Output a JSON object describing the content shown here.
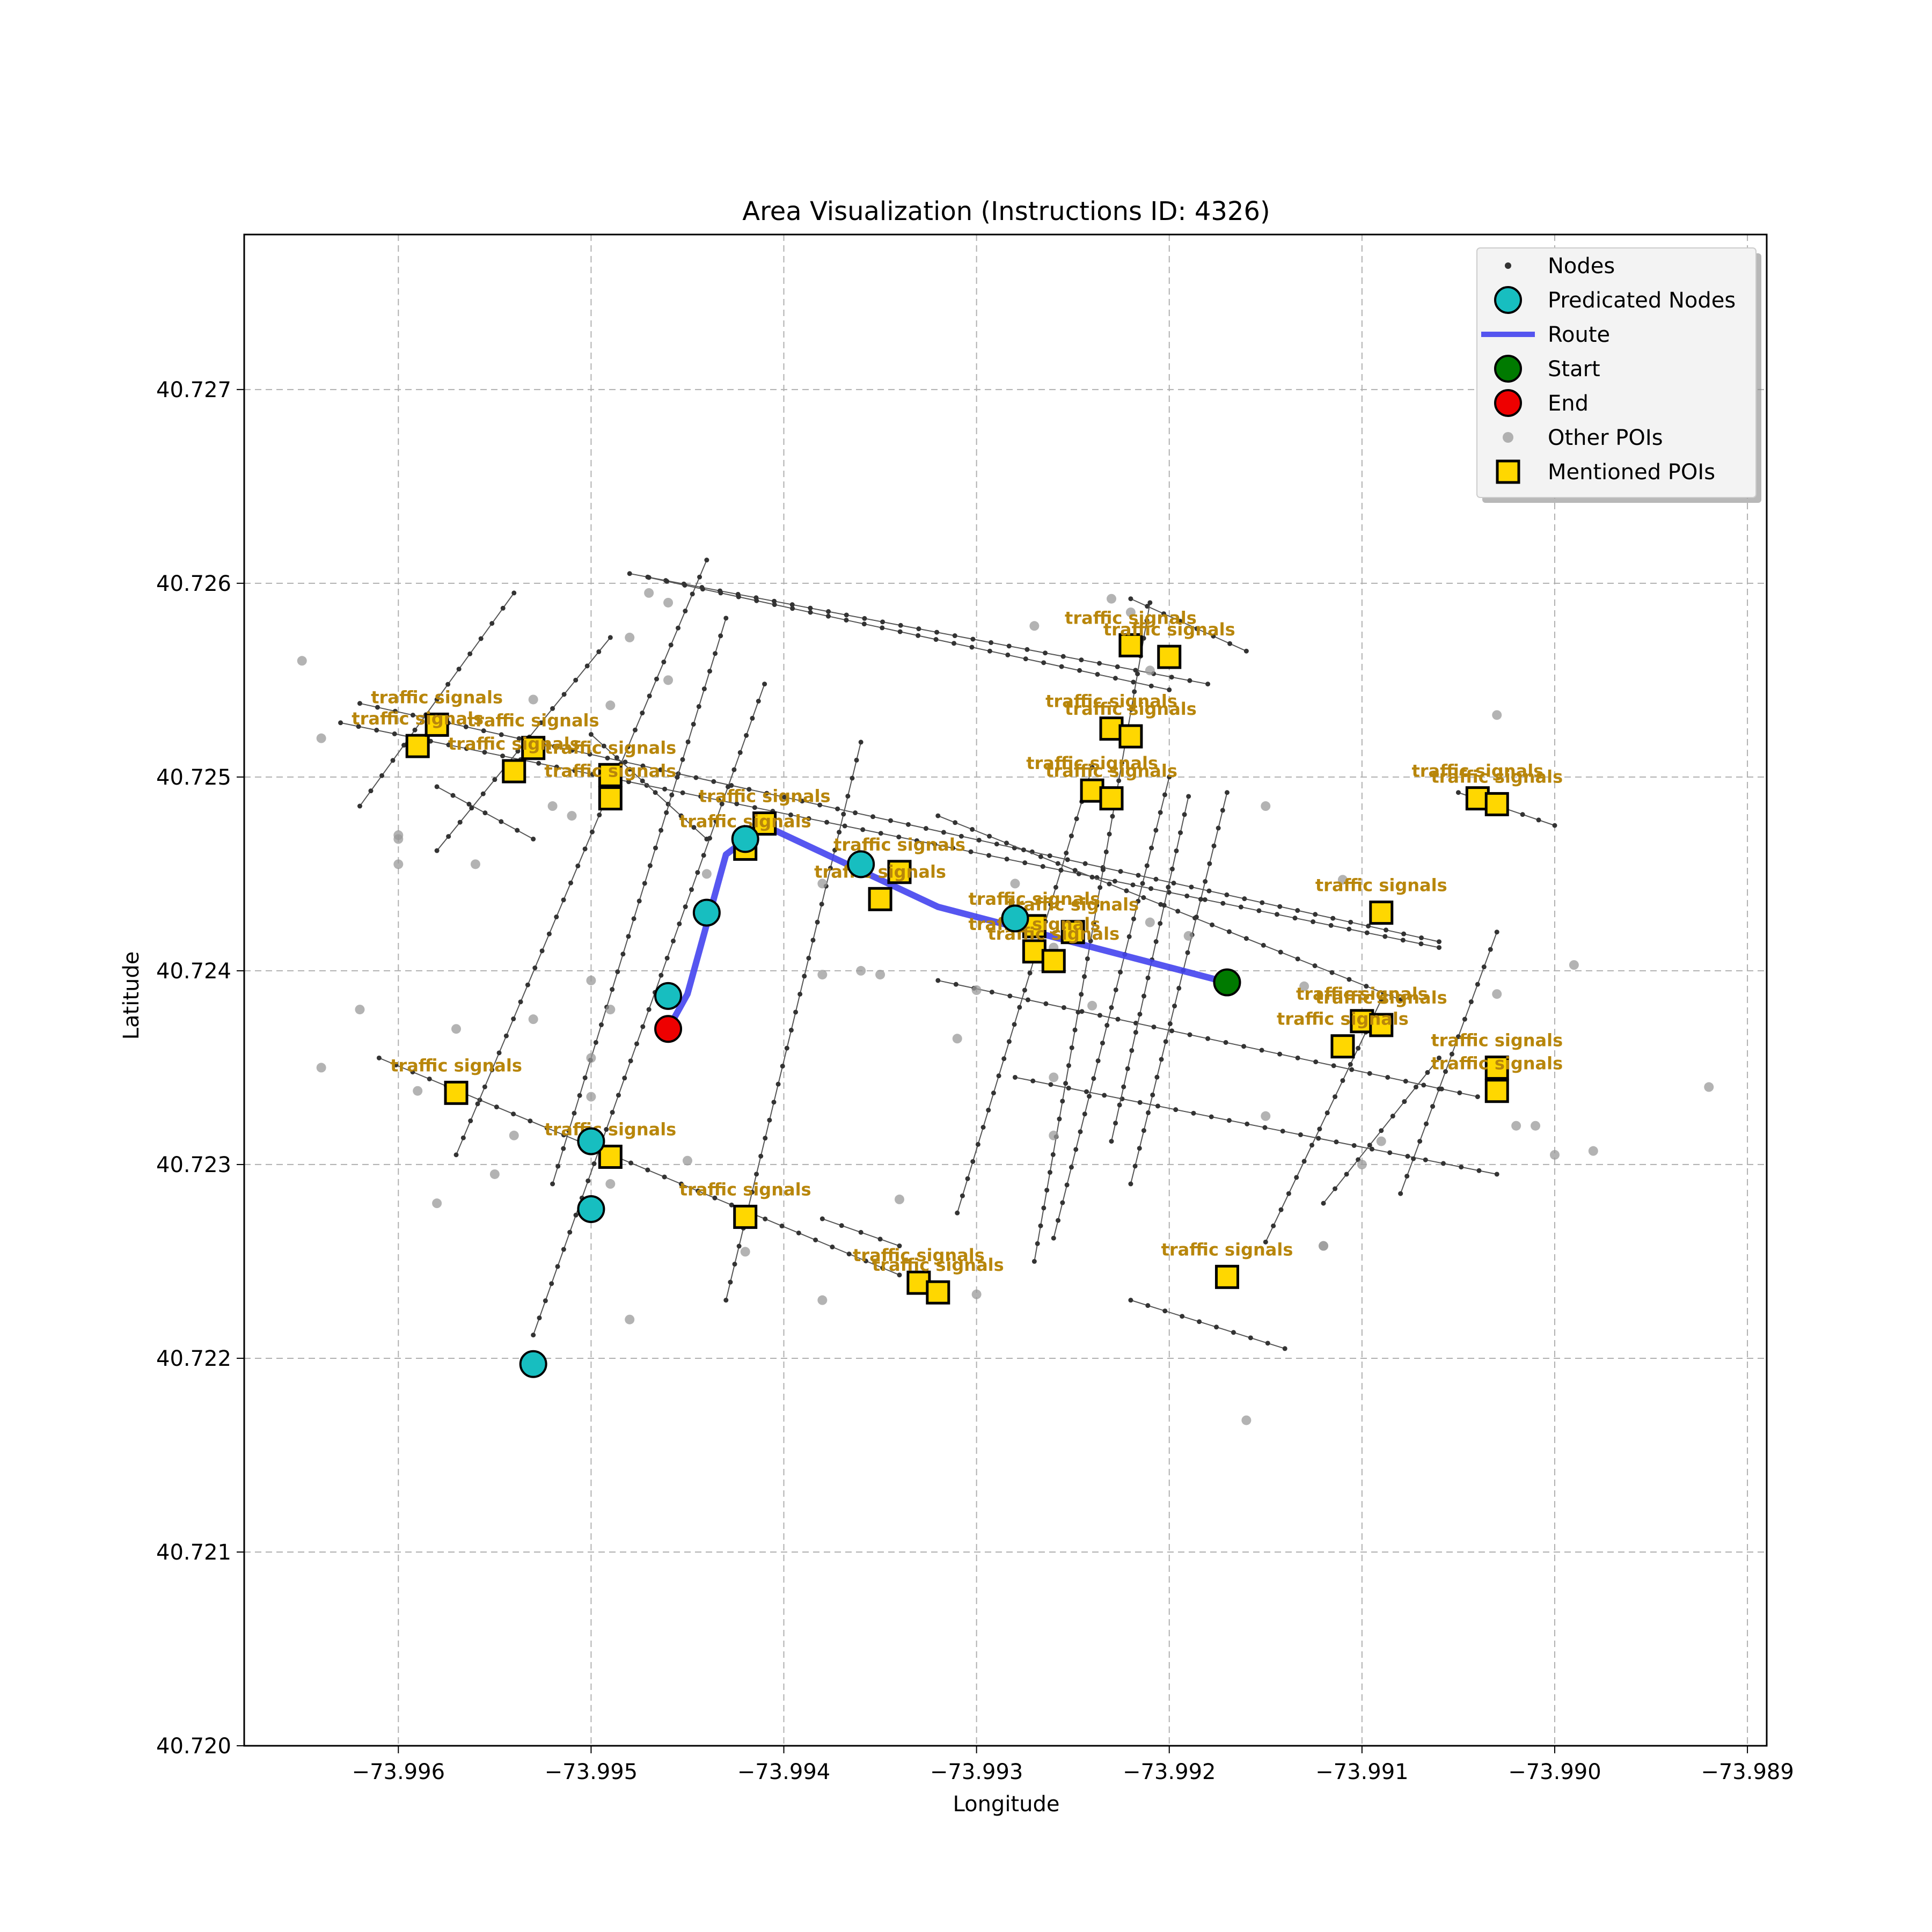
{
  "title": "Area Visualization (Instructions ID: 4326)",
  "chart_data": {
    "type": "scatter",
    "xlabel": "Longitude",
    "ylabel": "Latitude",
    "xlim": [
      -73.9968,
      -73.9889
    ],
    "ylim": [
      40.72,
      40.7278
    ],
    "xticks": [
      -73.996,
      -73.995,
      -73.994,
      -73.993,
      -73.992,
      -73.991,
      -73.99,
      -73.989
    ],
    "xtick_labels": [
      "−73.996",
      "−73.995",
      "−73.994",
      "−73.993",
      "−73.992",
      "−73.991",
      "−73.990",
      "−73.989"
    ],
    "yticks": [
      40.72,
      40.721,
      40.722,
      40.723,
      40.724,
      40.725,
      40.726,
      40.727
    ],
    "ytick_labels": [
      "40.720",
      "40.721",
      "40.722",
      "40.723",
      "40.724",
      "40.725",
      "40.726",
      "40.727"
    ],
    "grid": true,
    "legend_position": "top-right",
    "legend": [
      {
        "label": "Nodes",
        "marker": "small-dot",
        "color": "#333333"
      },
      {
        "label": "Predicated Nodes",
        "marker": "circle",
        "color": "#17bec0"
      },
      {
        "label": "Route",
        "marker": "line",
        "color": "#4444ee"
      },
      {
        "label": "Start",
        "marker": "circle",
        "color": "#007a00"
      },
      {
        "label": "End",
        "marker": "circle",
        "color": "#ee0000"
      },
      {
        "label": "Other POIs",
        "marker": "dot",
        "color": "#999999"
      },
      {
        "label": "Mentioned POIs",
        "marker": "square",
        "color": "#ffd700"
      }
    ],
    "streets": [
      [
        [
          -73.9963,
          40.72528
        ],
        [
          -73.9906,
          40.72412
        ]
      ],
      [
        [
          -73.9962,
          40.72538
        ],
        [
          -73.9906,
          40.72415
        ]
      ],
      [
        [
          -73.995,
          40.72522
        ],
        [
          -73.9944,
          40.72468
        ]
      ],
      [
        [
          -73.9958,
          40.72495
        ],
        [
          -73.9953,
          40.72468
        ]
      ],
      [
        [
          -73.9948,
          40.72605
        ],
        [
          -73.9918,
          40.72548
        ]
      ],
      [
        [
          -73.9947,
          40.72603
        ],
        [
          -73.992,
          40.72545
        ]
      ],
      [
        [
          -73.9961,
          40.72355
        ],
        [
          -73.9934,
          40.72243
        ]
      ],
      [
        [
          -73.9922,
          40.72592
        ],
        [
          -73.9916,
          40.72565
        ]
      ],
      [
        [
          -73.9932,
          40.7248
        ],
        [
          -73.9908,
          40.72385
        ]
      ],
      [
        [
          -73.9932,
          40.72395
        ],
        [
          -73.9904,
          40.72335
        ]
      ],
      [
        [
          -73.9928,
          40.72345
        ],
        [
          -73.9903,
          40.72295
        ]
      ],
      [
        [
          -73.9922,
          40.7223
        ],
        [
          -73.9914,
          40.72205
        ]
      ],
      [
        [
          -73.9905,
          40.72492
        ],
        [
          -73.99,
          40.72475
        ]
      ],
      [
        [
          -73.9938,
          40.72272
        ],
        [
          -73.9934,
          40.72258
        ]
      ],
      [
        [
          -73.9962,
          40.72485
        ],
        [
          -73.9954,
          40.72595
        ]
      ],
      [
        [
          -73.9958,
          40.72462
        ],
        [
          -73.9949,
          40.72572
        ]
      ],
      [
        [
          -73.9957,
          40.72305
        ],
        [
          -73.9944,
          40.72612
        ]
      ],
      [
        [
          -73.9953,
          40.72212
        ],
        [
          -73.9941,
          40.72548
        ]
      ],
      [
        [
          -73.9952,
          40.7229
        ],
        [
          -73.9943,
          40.72582
        ]
      ],
      [
        [
          -73.9943,
          40.7223
        ],
        [
          -73.9936,
          40.72518
        ]
      ],
      [
        [
          -73.9931,
          40.72275
        ],
        [
          -73.9924,
          40.72505
        ]
      ],
      [
        [
          -73.9927,
          40.7225
        ],
        [
          -73.9921,
          40.7259
        ]
      ],
      [
        [
          -73.9926,
          40.72262
        ],
        [
          -73.992,
          40.725
        ]
      ],
      [
        [
          -73.9923,
          40.72312
        ],
        [
          -73.9919,
          40.7249
        ]
      ],
      [
        [
          -73.9922,
          40.7229
        ],
        [
          -73.9917,
          40.72492
        ]
      ],
      [
        [
          -73.9915,
          40.7226
        ],
        [
          -73.9909,
          40.72385
        ]
      ],
      [
        [
          -73.9912,
          40.7228
        ],
        [
          -73.9906,
          40.72355
        ]
      ],
      [
        [
          -73.9908,
          40.72285
        ],
        [
          -73.9903,
          40.7242
        ]
      ]
    ],
    "route": [
      [
        -73.9917,
        40.72394
      ],
      [
        -73.9932,
        40.72433
      ],
      [
        -73.9941,
        40.72475
      ],
      [
        -73.9943,
        40.7246
      ],
      [
        -73.9945,
        40.72388
      ],
      [
        -73.9946,
        40.7237
      ]
    ],
    "predicted_nodes": [
      [
        -73.9942,
        40.72468
      ],
      [
        -73.9936,
        40.72455
      ],
      [
        -73.9928,
        40.72427
      ],
      [
        -73.9944,
        40.7243
      ],
      [
        -73.9946,
        40.72387
      ],
      [
        -73.995,
        40.72312
      ],
      [
        -73.995,
        40.72277
      ],
      [
        -73.9953,
        40.72197
      ]
    ],
    "start": [
      -73.9917,
      40.72394
    ],
    "end": [
      -73.9946,
      40.7237
    ],
    "other_pois": [
      [
        -73.9965,
        40.7256
      ],
      [
        -73.9964,
        40.7252
      ],
      [
        -73.996,
        40.7247
      ],
      [
        -73.996,
        40.72455
      ],
      [
        -73.9959,
        40.72338
      ],
      [
        -73.9964,
        40.7235
      ],
      [
        -73.9962,
        40.7238
      ],
      [
        -73.9958,
        40.7228
      ],
      [
        -73.9956,
        40.72455
      ],
      [
        -73.9954,
        40.72315
      ],
      [
        -73.9955,
        40.72295
      ],
      [
        -73.9953,
        40.72375
      ],
      [
        -73.9953,
        40.7254
      ],
      [
        -73.9952,
        40.72485
      ],
      [
        -73.9951,
        40.7248
      ],
      [
        -73.995,
        40.72395
      ],
      [
        -73.995,
        40.72335
      ],
      [
        -73.995,
        40.72355
      ],
      [
        -73.9948,
        40.72572
      ],
      [
        -73.9946,
        40.7255
      ],
      [
        -73.9949,
        40.7238
      ],
      [
        -73.9947,
        40.72595
      ],
      [
        -73.9946,
        40.7259
      ],
      [
        -73.9944,
        40.7245
      ],
      [
        -73.9949,
        40.7229
      ],
      [
        -73.9948,
        40.7222
      ],
      [
        -73.9945,
        40.72302
      ],
      [
        -73.9942,
        40.72255
      ],
      [
        -73.9938,
        40.72445
      ],
      [
        -73.9938,
        40.72398
      ],
      [
        -73.9935,
        40.72398
      ],
      [
        -73.9936,
        40.724
      ],
      [
        -73.9934,
        40.72282
      ],
      [
        -73.9931,
        40.72365
      ],
      [
        -73.993,
        40.7239
      ],
      [
        -73.993,
        40.72233
      ],
      [
        -73.9928,
        40.72445
      ],
      [
        -73.9926,
        40.72412
      ],
      [
        -73.9926,
        40.72345
      ],
      [
        -73.9926,
        40.72315
      ],
      [
        -73.9927,
        40.72578
      ],
      [
        -73.9923,
        40.72592
      ],
      [
        -73.9922,
        40.72585
      ],
      [
        -73.9921,
        40.72555
      ],
      [
        -73.9921,
        40.72425
      ],
      [
        -73.9924,
        40.72382
      ],
      [
        -73.9919,
        40.72418
      ],
      [
        -73.9915,
        40.72485
      ],
      [
        -73.9915,
        40.72325
      ],
      [
        -73.9912,
        40.72258
      ],
      [
        -73.9911,
        40.72447
      ],
      [
        -73.991,
        40.723
      ],
      [
        -73.9909,
        40.72312
      ],
      [
        -73.9903,
        40.72532
      ],
      [
        -73.9902,
        40.7232
      ],
      [
        -73.9901,
        40.7232
      ],
      [
        -73.99,
        40.72305
      ],
      [
        -73.9899,
        40.72403
      ],
      [
        -73.9898,
        40.72307
      ],
      [
        -73.9892,
        40.7234
      ],
      [
        -73.9916,
        40.72168
      ],
      [
        -73.9913,
        40.72392
      ],
      [
        -73.9903,
        40.72388
      ],
      [
        -73.9912,
        40.72258
      ],
      [
        -73.996,
        40.72468
      ],
      [
        -73.9949,
        40.72537
      ],
      [
        -73.9957,
        40.7237
      ],
      [
        -73.9938,
        40.7223
      ]
    ],
    "mentioned_pois": [
      {
        "lon": -73.9959,
        "lat": 40.72516,
        "label": "traffic signals"
      },
      {
        "lon": -73.9958,
        "lat": 40.72527,
        "label": "traffic signals"
      },
      {
        "lon": -73.9954,
        "lat": 40.72503,
        "label": "traffic signals"
      },
      {
        "lon": -73.9953,
        "lat": 40.72515,
        "label": "traffic signals"
      },
      {
        "lon": -73.9949,
        "lat": 40.72489,
        "label": "traffic signals"
      },
      {
        "lon": -73.9949,
        "lat": 40.72501,
        "label": "traffic signals"
      },
      {
        "lon": -73.9942,
        "lat": 40.72463,
        "label": "traffic signals"
      },
      {
        "lon": -73.9941,
        "lat": 40.72476,
        "label": "traffic signals"
      },
      {
        "lon": -73.9935,
        "lat": 40.72437,
        "label": "traffic signals"
      },
      {
        "lon": -73.9934,
        "lat": 40.72451,
        "label": "traffic signals"
      },
      {
        "lon": -73.9927,
        "lat": 40.7241,
        "label": "traffic signals"
      },
      {
        "lon": -73.9927,
        "lat": 40.72423,
        "label": "traffic signals"
      },
      {
        "lon": -73.9926,
        "lat": 40.72405,
        "label": "traffic signals"
      },
      {
        "lon": -73.9925,
        "lat": 40.7242,
        "label": "traffic signals"
      },
      {
        "lon": -73.9924,
        "lat": 40.72493,
        "label": "traffic signals"
      },
      {
        "lon": -73.9923,
        "lat": 40.72489,
        "label": "traffic signals"
      },
      {
        "lon": -73.9923,
        "lat": 40.72525,
        "label": "traffic signals"
      },
      {
        "lon": -73.9922,
        "lat": 40.72521,
        "label": "traffic signals"
      },
      {
        "lon": -73.9922,
        "lat": 40.72568,
        "label": "traffic signals"
      },
      {
        "lon": -73.992,
        "lat": 40.72562,
        "label": "traffic signals"
      },
      {
        "lon": -73.9909,
        "lat": 40.7243,
        "label": "traffic signals"
      },
      {
        "lon": -73.9904,
        "lat": 40.72489,
        "label": "traffic signals"
      },
      {
        "lon": -73.9903,
        "lat": 40.72486,
        "label": "traffic signals"
      },
      {
        "lon": -73.9911,
        "lat": 40.72361,
        "label": "traffic signals"
      },
      {
        "lon": -73.991,
        "lat": 40.72374,
        "label": "traffic signals"
      },
      {
        "lon": -73.9909,
        "lat": 40.72372,
        "label": "traffic signals"
      },
      {
        "lon": -73.9903,
        "lat": 40.72338,
        "label": "traffic signals"
      },
      {
        "lon": -73.9903,
        "lat": 40.7235,
        "label": "traffic signals"
      },
      {
        "lon": -73.9957,
        "lat": 40.72337,
        "label": "traffic signals"
      },
      {
        "lon": -73.9949,
        "lat": 40.72304,
        "label": "traffic signals"
      },
      {
        "lon": -73.9942,
        "lat": 40.72273,
        "label": "traffic signals"
      },
      {
        "lon": -73.9933,
        "lat": 40.72239,
        "label": "traffic signals"
      },
      {
        "lon": -73.9932,
        "lat": 40.72234,
        "label": "traffic signals"
      },
      {
        "lon": -73.9917,
        "lat": 40.72242,
        "label": "traffic signals"
      }
    ]
  }
}
